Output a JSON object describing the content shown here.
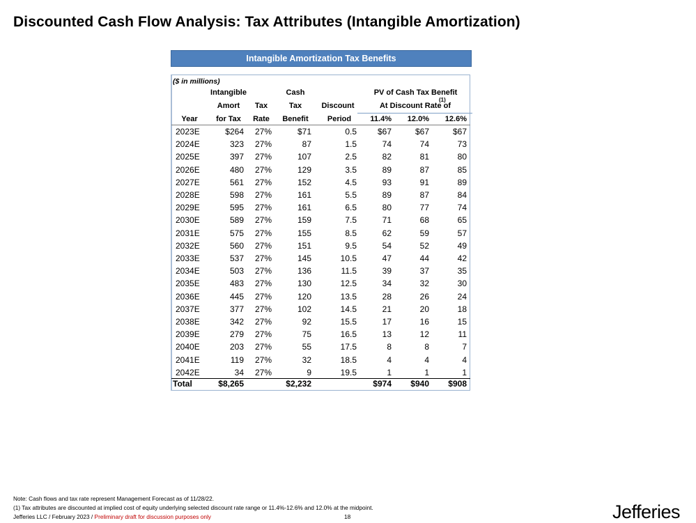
{
  "page": {
    "title": "Discounted Cash Flow Analysis: Tax Attributes (Intangible Amortization)"
  },
  "table": {
    "title": "Intangible Amortization Tax Benefits",
    "units": "($ in millions)",
    "headers": {
      "year": "Year",
      "amort_l1": "Intangible",
      "amort_l2": "Amort",
      "amort_l3": "for Tax",
      "rate_l2": "Tax",
      "rate_l3": "Rate",
      "cash_l1": "Cash",
      "cash_l2": "Tax",
      "cash_l3": "Benefit",
      "disc_l2": "Discount",
      "disc_l3": "Period",
      "pv_l1": "PV of Cash Tax Benefit",
      "pv_l2": "At Discount Rate of",
      "pv_footnote": "(1)",
      "rate_a": "11.4%",
      "rate_b": "12.0%",
      "rate_c": "12.6%"
    },
    "rows": [
      {
        "year": "2023E",
        "amort": "$264",
        "rate": "27%",
        "benefit": "$71",
        "period": "0.5",
        "pv1": "$67",
        "pv2": "$67",
        "pv3": "$67"
      },
      {
        "year": "2024E",
        "amort": "323",
        "rate": "27%",
        "benefit": "87",
        "period": "1.5",
        "pv1": "74",
        "pv2": "74",
        "pv3": "73"
      },
      {
        "year": "2025E",
        "amort": "397",
        "rate": "27%",
        "benefit": "107",
        "period": "2.5",
        "pv1": "82",
        "pv2": "81",
        "pv3": "80"
      },
      {
        "year": "2026E",
        "amort": "480",
        "rate": "27%",
        "benefit": "129",
        "period": "3.5",
        "pv1": "89",
        "pv2": "87",
        "pv3": "85"
      },
      {
        "year": "2027E",
        "amort": "561",
        "rate": "27%",
        "benefit": "152",
        "period": "4.5",
        "pv1": "93",
        "pv2": "91",
        "pv3": "89"
      },
      {
        "year": "2028E",
        "amort": "598",
        "rate": "27%",
        "benefit": "161",
        "period": "5.5",
        "pv1": "89",
        "pv2": "87",
        "pv3": "84"
      },
      {
        "year": "2029E",
        "amort": "595",
        "rate": "27%",
        "benefit": "161",
        "period": "6.5",
        "pv1": "80",
        "pv2": "77",
        "pv3": "74"
      },
      {
        "year": "2030E",
        "amort": "589",
        "rate": "27%",
        "benefit": "159",
        "period": "7.5",
        "pv1": "71",
        "pv2": "68",
        "pv3": "65"
      },
      {
        "year": "2031E",
        "amort": "575",
        "rate": "27%",
        "benefit": "155",
        "period": "8.5",
        "pv1": "62",
        "pv2": "59",
        "pv3": "57"
      },
      {
        "year": "2032E",
        "amort": "560",
        "rate": "27%",
        "benefit": "151",
        "period": "9.5",
        "pv1": "54",
        "pv2": "52",
        "pv3": "49"
      },
      {
        "year": "2033E",
        "amort": "537",
        "rate": "27%",
        "benefit": "145",
        "period": "10.5",
        "pv1": "47",
        "pv2": "44",
        "pv3": "42"
      },
      {
        "year": "2034E",
        "amort": "503",
        "rate": "27%",
        "benefit": "136",
        "period": "11.5",
        "pv1": "39",
        "pv2": "37",
        "pv3": "35"
      },
      {
        "year": "2035E",
        "amort": "483",
        "rate": "27%",
        "benefit": "130",
        "period": "12.5",
        "pv1": "34",
        "pv2": "32",
        "pv3": "30"
      },
      {
        "year": "2036E",
        "amort": "445",
        "rate": "27%",
        "benefit": "120",
        "period": "13.5",
        "pv1": "28",
        "pv2": "26",
        "pv3": "24"
      },
      {
        "year": "2037E",
        "amort": "377",
        "rate": "27%",
        "benefit": "102",
        "period": "14.5",
        "pv1": "21",
        "pv2": "20",
        "pv3": "18"
      },
      {
        "year": "2038E",
        "amort": "342",
        "rate": "27%",
        "benefit": "92",
        "period": "15.5",
        "pv1": "17",
        "pv2": "16",
        "pv3": "15"
      },
      {
        "year": "2039E",
        "amort": "279",
        "rate": "27%",
        "benefit": "75",
        "period": "16.5",
        "pv1": "13",
        "pv2": "12",
        "pv3": "11"
      },
      {
        "year": "2040E",
        "amort": "203",
        "rate": "27%",
        "benefit": "55",
        "period": "17.5",
        "pv1": "8",
        "pv2": "8",
        "pv3": "7"
      },
      {
        "year": "2041E",
        "amort": "119",
        "rate": "27%",
        "benefit": "32",
        "period": "18.5",
        "pv1": "4",
        "pv2": "4",
        "pv3": "4"
      },
      {
        "year": "2042E",
        "amort": "34",
        "rate": "27%",
        "benefit": "9",
        "period": "19.5",
        "pv1": "1",
        "pv2": "1",
        "pv3": "1"
      }
    ],
    "total": {
      "label": "Total",
      "amort": "$8,265",
      "benefit": "$2,232",
      "pv1": "$974",
      "pv2": "$940",
      "pv3": "$908"
    }
  },
  "footer": {
    "note": "Note: Cash flows and tax rate represent Management Forecast as of 11/28/22.",
    "footnote": "(1)    Tax attributes are discounted at implied cost of equity underlying selected discount rate range or 11.4%-12.6% and 12.0% at the midpoint.",
    "company_date": "Jefferies LLC  /  February 2023  /",
    "draft": "Preliminary draft for discussion purposes only",
    "page_number": "18",
    "logo": "Jefferies"
  }
}
